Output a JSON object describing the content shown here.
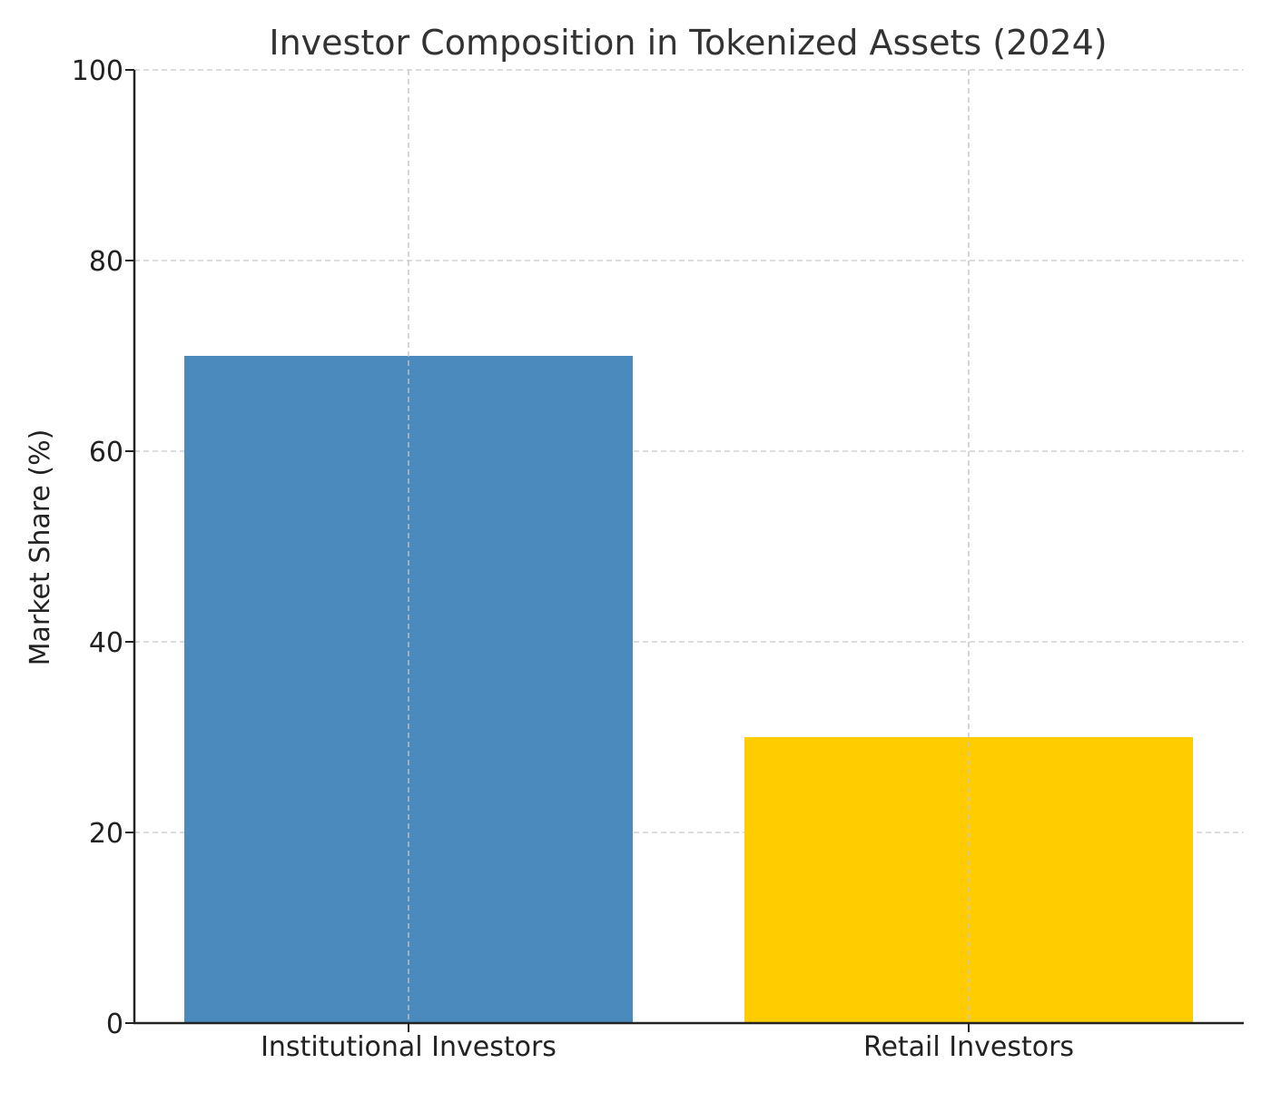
{
  "chart_data": {
    "type": "bar",
    "title": "Investor Composition in Tokenized Assets (2024)",
    "xlabel": "",
    "ylabel": "Market Share (%)",
    "categories": [
      "Institutional Investors",
      "Retail Investors"
    ],
    "values": [
      70,
      30
    ],
    "colors": [
      "#4a8abd",
      "#ffcc00"
    ],
    "ylim": [
      0,
      100
    ],
    "yticks": [
      0,
      20,
      40,
      60,
      80,
      100
    ],
    "grid": true,
    "legend": "none"
  }
}
